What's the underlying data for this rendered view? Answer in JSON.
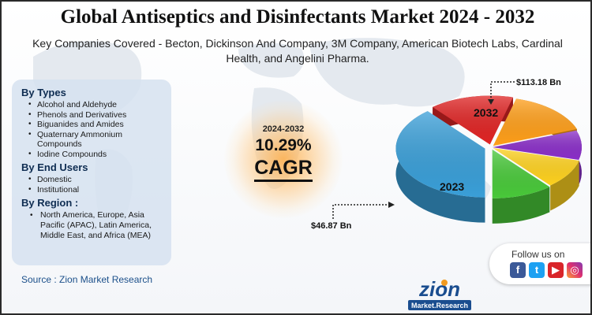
{
  "header": {
    "title": "Global Antiseptics and Disinfectants Market 2024 - 2032",
    "subtitle": "Key Companies Covered - Becton, Dickinson And Company, 3M Company, American Biotech Labs, Cardinal Health, and Angelini Pharma."
  },
  "segments": {
    "types_title": "By Types",
    "types": [
      "Alcohol and Aldehyde",
      "Phenols and Derivatives",
      "Biguanides and Amides",
      "Quaternary Ammonium Compounds",
      "Iodine Compounds"
    ],
    "end_users_title": "By End Users",
    "end_users": [
      "Domestic",
      "Institutional"
    ],
    "region_title": "By Region :",
    "regions": [
      "North America, Europe, Asia Pacific (APAC), Latin America, Middle East, and Africa (MEA)"
    ]
  },
  "cagr": {
    "period": "2024-2032",
    "value": "10.29%",
    "label": "CAGR"
  },
  "source": "Source : Zion Market Research",
  "follow": {
    "label": "Follow us on",
    "icons": [
      "facebook-icon",
      "twitter-icon",
      "youtube-icon",
      "instagram-icon"
    ]
  },
  "logo": {
    "name": "zion",
    "tagline": "Market.Research"
  },
  "chart_data": {
    "type": "pie",
    "style": "3d-exploded",
    "categories": [
      "2023",
      "2032"
    ],
    "values": [
      46.87,
      113.18
    ],
    "value_labels": [
      "$46.87 Bn",
      "$113.18 Bn"
    ],
    "slice_colors": [
      "#3a9fd8",
      "#e02525",
      "#ff9f1a",
      "#8b2fc9",
      "#ffd21f",
      "#49c93a"
    ]
  }
}
